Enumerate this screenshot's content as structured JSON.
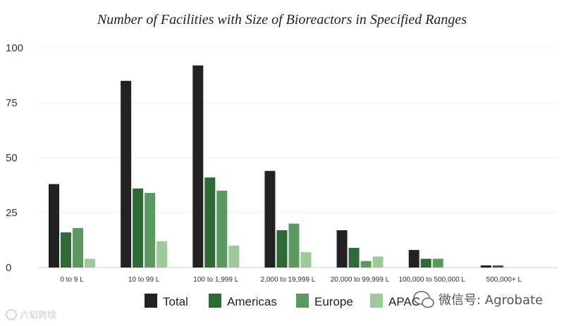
{
  "chart_data": {
    "type": "bar",
    "title": "Number of Facilities with Size of Bioreactors in Specified Ranges",
    "xlabel": "",
    "ylabel": "",
    "ylim": [
      0,
      100
    ],
    "yticks": [
      0,
      25,
      50,
      75,
      100
    ],
    "grid": true,
    "legend_position": "bottom",
    "categories": [
      "0 to 9 L",
      "10 to 99 L",
      "100 to 1,999 L",
      "2,000 to 19,999 L",
      "20,000 to 99,999 L",
      "100,000 to 500,000 L",
      "500,000+ L"
    ],
    "series": [
      {
        "name": "Total",
        "color": "#222222",
        "values": [
          38,
          85,
          92,
          44,
          17,
          8,
          1
        ]
      },
      {
        "name": "Americas",
        "color": "#2d6a35",
        "values": [
          16,
          36,
          41,
          17,
          9,
          4,
          1
        ]
      },
      {
        "name": "Europe",
        "color": "#5a9a60",
        "values": [
          18,
          34,
          35,
          20,
          3,
          4,
          0
        ]
      },
      {
        "name": "APAC",
        "color": "#9ec99a",
        "values": [
          4,
          12,
          10,
          7,
          5,
          0,
          0
        ]
      }
    ]
  },
  "watermarks": {
    "left": "六韬跨境",
    "right": "微信号: Agrobate"
  }
}
